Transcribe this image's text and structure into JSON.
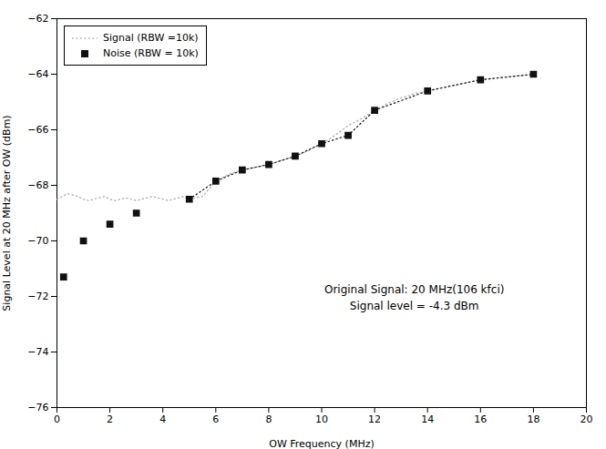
{
  "chart_data": {
    "type": "line",
    "xlabel": "OW Frequency (MHz)",
    "ylabel": "Signal Level at 20 MHz after OW (dBm)",
    "xlim": [
      0,
      20
    ],
    "ylim": [
      -76,
      -62
    ],
    "xticks": [
      0,
      2,
      4,
      6,
      8,
      10,
      12,
      14,
      16,
      18,
      20
    ],
    "yticks": [
      -76,
      -74,
      -72,
      -70,
      -68,
      -66,
      -64,
      -62
    ],
    "grid": false,
    "legend": "upper left",
    "annotations": [
      {
        "x": 13.5,
        "y": -72.0,
        "text": "Original Signal: 20 MHz(106 kfci)\nSignal level = -4.3 dBm"
      }
    ],
    "series": [
      {
        "name": "Signal (RBW =10k)",
        "type": "line",
        "color": "#aaaaaa",
        "line_style": "dotted",
        "x": [
          0.0,
          0.2,
          0.4,
          0.6,
          0.8,
          1.0,
          1.2,
          1.4,
          1.6,
          1.8,
          2.0,
          2.2,
          2.4,
          2.6,
          2.8,
          3.0,
          3.2,
          3.4,
          3.6,
          3.8,
          4.0,
          4.2,
          4.4,
          4.6,
          4.8,
          5.0,
          5.5,
          6.0,
          6.5,
          7.0,
          7.5,
          8.0,
          8.5,
          9.0,
          9.5,
          10.0,
          10.5,
          11.0,
          11.5,
          12.0,
          12.5,
          13.0,
          13.5,
          14.0,
          14.5,
          15.0,
          15.5,
          16.0,
          16.5,
          17.0,
          17.5,
          18.0
        ],
        "values": [
          -68.5,
          -68.4,
          -68.3,
          -68.35,
          -68.4,
          -68.5,
          -68.55,
          -68.5,
          -68.45,
          -68.4,
          -68.5,
          -68.55,
          -68.5,
          -68.45,
          -68.5,
          -68.55,
          -68.5,
          -68.45,
          -68.4,
          -68.45,
          -68.5,
          -68.55,
          -68.5,
          -68.45,
          -68.4,
          -68.5,
          -68.4,
          -67.85,
          -67.6,
          -67.45,
          -67.35,
          -67.25,
          -67.1,
          -66.95,
          -66.75,
          -66.5,
          -66.2,
          -65.85,
          -65.6,
          -65.3,
          -65.05,
          -64.85,
          -64.7,
          -64.6,
          -64.5,
          -64.4,
          -64.3,
          -64.2,
          -64.15,
          -64.1,
          -64.05,
          -64.0
        ]
      },
      {
        "name": "Noise (RBW = 10k)",
        "type": "line",
        "color": "#111111",
        "line_style": "dotted",
        "marker": "square",
        "x": [
          5.0,
          6.0,
          7.0,
          8.0,
          9.0,
          10.0,
          11.0,
          12.0,
          14.0,
          16.0,
          18.0
        ],
        "values": [
          -68.5,
          -67.85,
          -67.45,
          -67.25,
          -66.95,
          -66.5,
          -66.2,
          -65.3,
          -64.6,
          -64.2,
          -64.0
        ]
      },
      {
        "name": "Noise (RBW = 10k)",
        "type": "scatter",
        "color": "#111111",
        "marker": "square",
        "x": [
          0.25,
          1.0,
          2.0,
          3.0
        ],
        "values": [
          -71.3,
          -70.0,
          -69.4,
          -69.0
        ]
      }
    ]
  }
}
